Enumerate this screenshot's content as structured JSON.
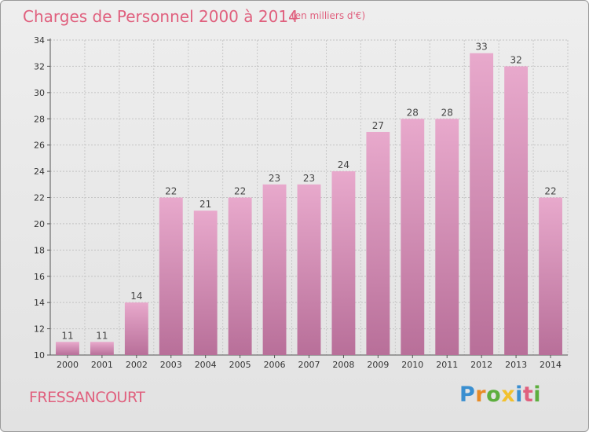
{
  "header": {
    "title": "Charges de Personnel 2000 à 2014",
    "subtitle": "(en milliers d'€)"
  },
  "footer": {
    "commune": "FRESSANCOURT",
    "logo": [
      "P",
      "r",
      "o",
      "x",
      "i",
      "t",
      "i"
    ]
  },
  "colors": {
    "bar_top": "#e8a9cc",
    "bar_bottom": "#b86f99",
    "title": "#e0607e",
    "background": "#e8e8e8"
  },
  "chart_data": {
    "type": "bar",
    "title": "Charges de Personnel 2000 à 2014",
    "subtitle": "(en milliers d'€)",
    "categories": [
      "2000",
      "2001",
      "2002",
      "2003",
      "2004",
      "2005",
      "2006",
      "2007",
      "2008",
      "2009",
      "2010",
      "2011",
      "2012",
      "2013",
      "2014"
    ],
    "values": [
      11,
      11,
      14,
      22,
      21,
      22,
      23,
      23,
      24,
      27,
      28,
      28,
      33,
      32,
      22
    ],
    "ylim": [
      10,
      34
    ],
    "yticks": [
      10,
      12,
      14,
      16,
      18,
      20,
      22,
      24,
      26,
      28,
      30,
      32,
      34
    ],
    "grid": true,
    "xlabel": "",
    "ylabel": ""
  }
}
